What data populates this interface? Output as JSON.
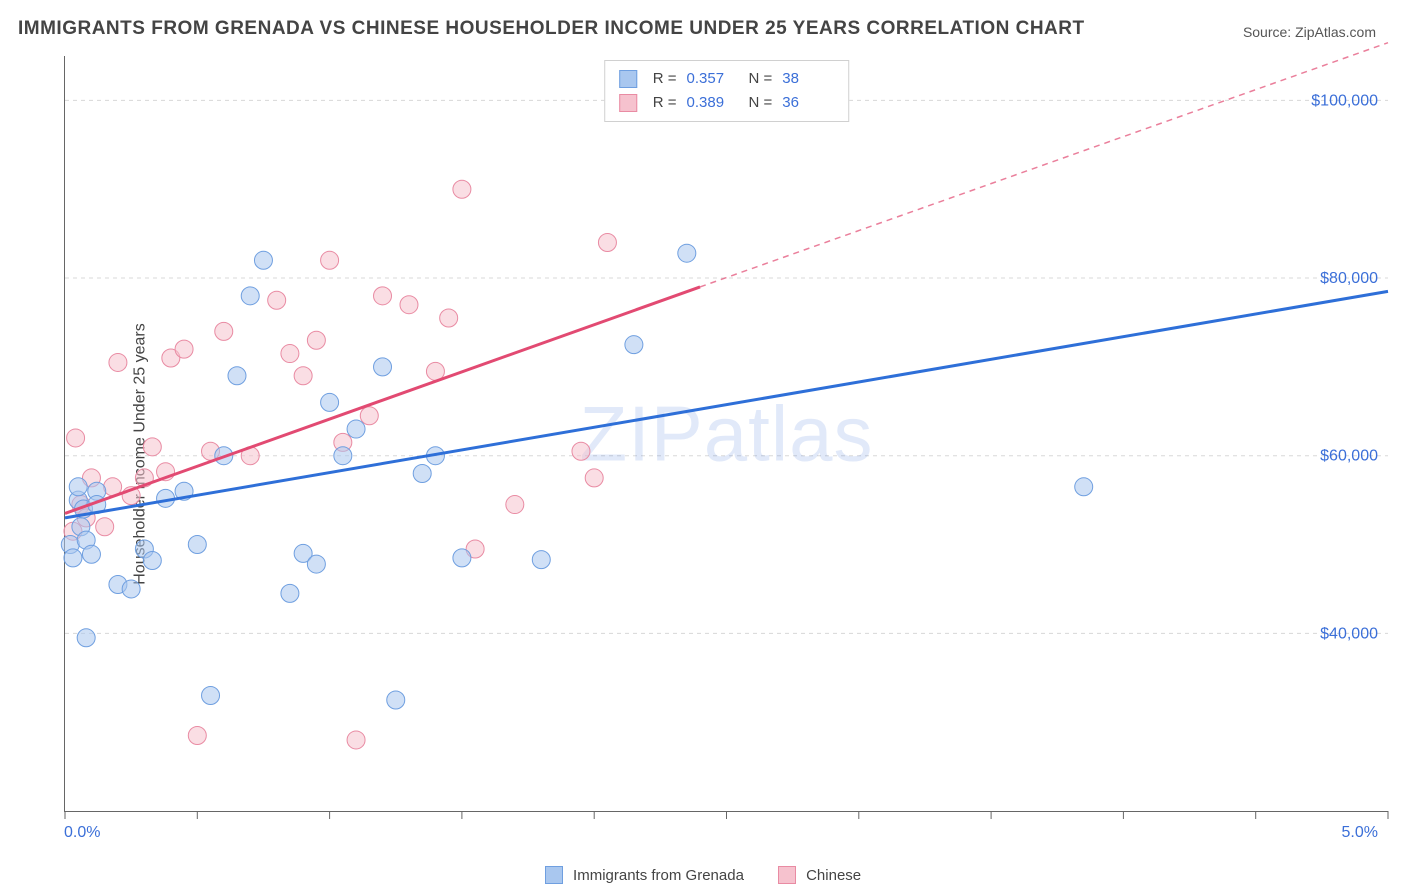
{
  "title": "IMMIGRANTS FROM GRENADA VS CHINESE HOUSEHOLDER INCOME UNDER 25 YEARS CORRELATION CHART",
  "source_label": "Source: ZipAtlas.com",
  "watermark_text": "ZIPatlas",
  "ylabel": "Householder Income Under 25 years",
  "chart": {
    "type": "scatter",
    "background_color": "#ffffff",
    "grid_color": "#d8d8d8",
    "axis_color": "#666666",
    "tick_label_color": "#3b6fd8",
    "xlim": [
      0.0,
      5.0
    ],
    "ylim": [
      20000,
      105000
    ],
    "x_ticks": [
      0.0,
      0.5,
      1.0,
      1.5,
      2.0,
      2.5,
      3.0,
      3.5,
      4.0,
      4.5,
      5.0
    ],
    "x_tick_labels": {
      "0": "0.0%",
      "5": "5.0%"
    },
    "y_ticks": [
      40000,
      60000,
      80000,
      100000
    ],
    "y_tick_labels": [
      "$40,000",
      "$60,000",
      "$80,000",
      "$100,000"
    ],
    "marker_radius": 9,
    "marker_opacity": 0.55,
    "line_width": 3,
    "dash_pattern": "6 5",
    "label_fontsize": 16,
    "title_fontsize": 19
  },
  "series": {
    "a": {
      "label": "Immigrants from Grenada",
      "color_fill": "#a9c7ef",
      "color_stroke": "#6f9fe0",
      "line_color": "#2e6fd8",
      "R": "0.357",
      "N": "38",
      "trend": {
        "x1": 0.0,
        "y1": 53000,
        "x2": 5.0,
        "y2": 78500
      },
      "points": [
        [
          0.02,
          50000
        ],
        [
          0.03,
          48500
        ],
        [
          0.05,
          55000
        ],
        [
          0.05,
          56500
        ],
        [
          0.06,
          52000
        ],
        [
          0.07,
          54000
        ],
        [
          0.08,
          50500
        ],
        [
          0.1,
          48900
        ],
        [
          0.12,
          56000
        ],
        [
          0.12,
          54500
        ],
        [
          0.08,
          39500
        ],
        [
          0.2,
          45500
        ],
        [
          0.25,
          45000
        ],
        [
          0.3,
          49500
        ],
        [
          0.33,
          48200
        ],
        [
          0.38,
          55200
        ],
        [
          0.45,
          56000
        ],
        [
          0.5,
          50000
        ],
        [
          0.55,
          33000
        ],
        [
          0.6,
          60000
        ],
        [
          0.65,
          69000
        ],
        [
          0.7,
          78000
        ],
        [
          0.75,
          82000
        ],
        [
          0.85,
          44500
        ],
        [
          0.9,
          49000
        ],
        [
          0.95,
          47800
        ],
        [
          1.0,
          66000
        ],
        [
          1.05,
          60000
        ],
        [
          1.1,
          63000
        ],
        [
          1.2,
          70000
        ],
        [
          1.25,
          32500
        ],
        [
          1.35,
          58000
        ],
        [
          1.4,
          60000
        ],
        [
          1.5,
          48500
        ],
        [
          1.8,
          48300
        ],
        [
          2.15,
          72500
        ],
        [
          2.35,
          82800
        ],
        [
          3.85,
          56500
        ]
      ]
    },
    "b": {
      "label": "Chinese",
      "color_fill": "#f6c2ce",
      "color_stroke": "#e98ba3",
      "line_color": "#e24a72",
      "R": "0.389",
      "N": "36",
      "trend_solid": {
        "x1": 0.0,
        "y1": 53500,
        "x2": 2.4,
        "y2": 79000
      },
      "trend_dash": {
        "x1": 2.4,
        "y1": 79000,
        "x2": 5.0,
        "y2": 106500
      },
      "points": [
        [
          0.03,
          51500
        ],
        [
          0.04,
          62000
        ],
        [
          0.06,
          54500
        ],
        [
          0.08,
          53000
        ],
        [
          0.1,
          57500
        ],
        [
          0.15,
          52000
        ],
        [
          0.18,
          56500
        ],
        [
          0.2,
          70500
        ],
        [
          0.25,
          55500
        ],
        [
          0.3,
          57500
        ],
        [
          0.33,
          61000
        ],
        [
          0.38,
          58200
        ],
        [
          0.4,
          71000
        ],
        [
          0.45,
          72000
        ],
        [
          0.5,
          28500
        ],
        [
          0.55,
          60500
        ],
        [
          0.6,
          74000
        ],
        [
          0.7,
          60000
        ],
        [
          0.8,
          77500
        ],
        [
          0.85,
          71500
        ],
        [
          0.9,
          69000
        ],
        [
          0.95,
          73000
        ],
        [
          1.0,
          82000
        ],
        [
          1.05,
          61500
        ],
        [
          1.1,
          28000
        ],
        [
          1.15,
          64500
        ],
        [
          1.2,
          78000
        ],
        [
          1.3,
          77000
        ],
        [
          1.4,
          69500
        ],
        [
          1.45,
          75500
        ],
        [
          1.5,
          90000
        ],
        [
          1.55,
          49500
        ],
        [
          1.7,
          54500
        ],
        [
          1.95,
          60500
        ],
        [
          2.0,
          57500
        ],
        [
          2.05,
          84000
        ]
      ]
    }
  },
  "legend": {
    "bottom": [
      {
        "swatch_fill": "#a9c7ef",
        "swatch_stroke": "#6f9fe0",
        "key": "series.a.label"
      },
      {
        "swatch_fill": "#f6c2ce",
        "swatch_stroke": "#e98ba3",
        "key": "series.b.label"
      }
    ]
  }
}
